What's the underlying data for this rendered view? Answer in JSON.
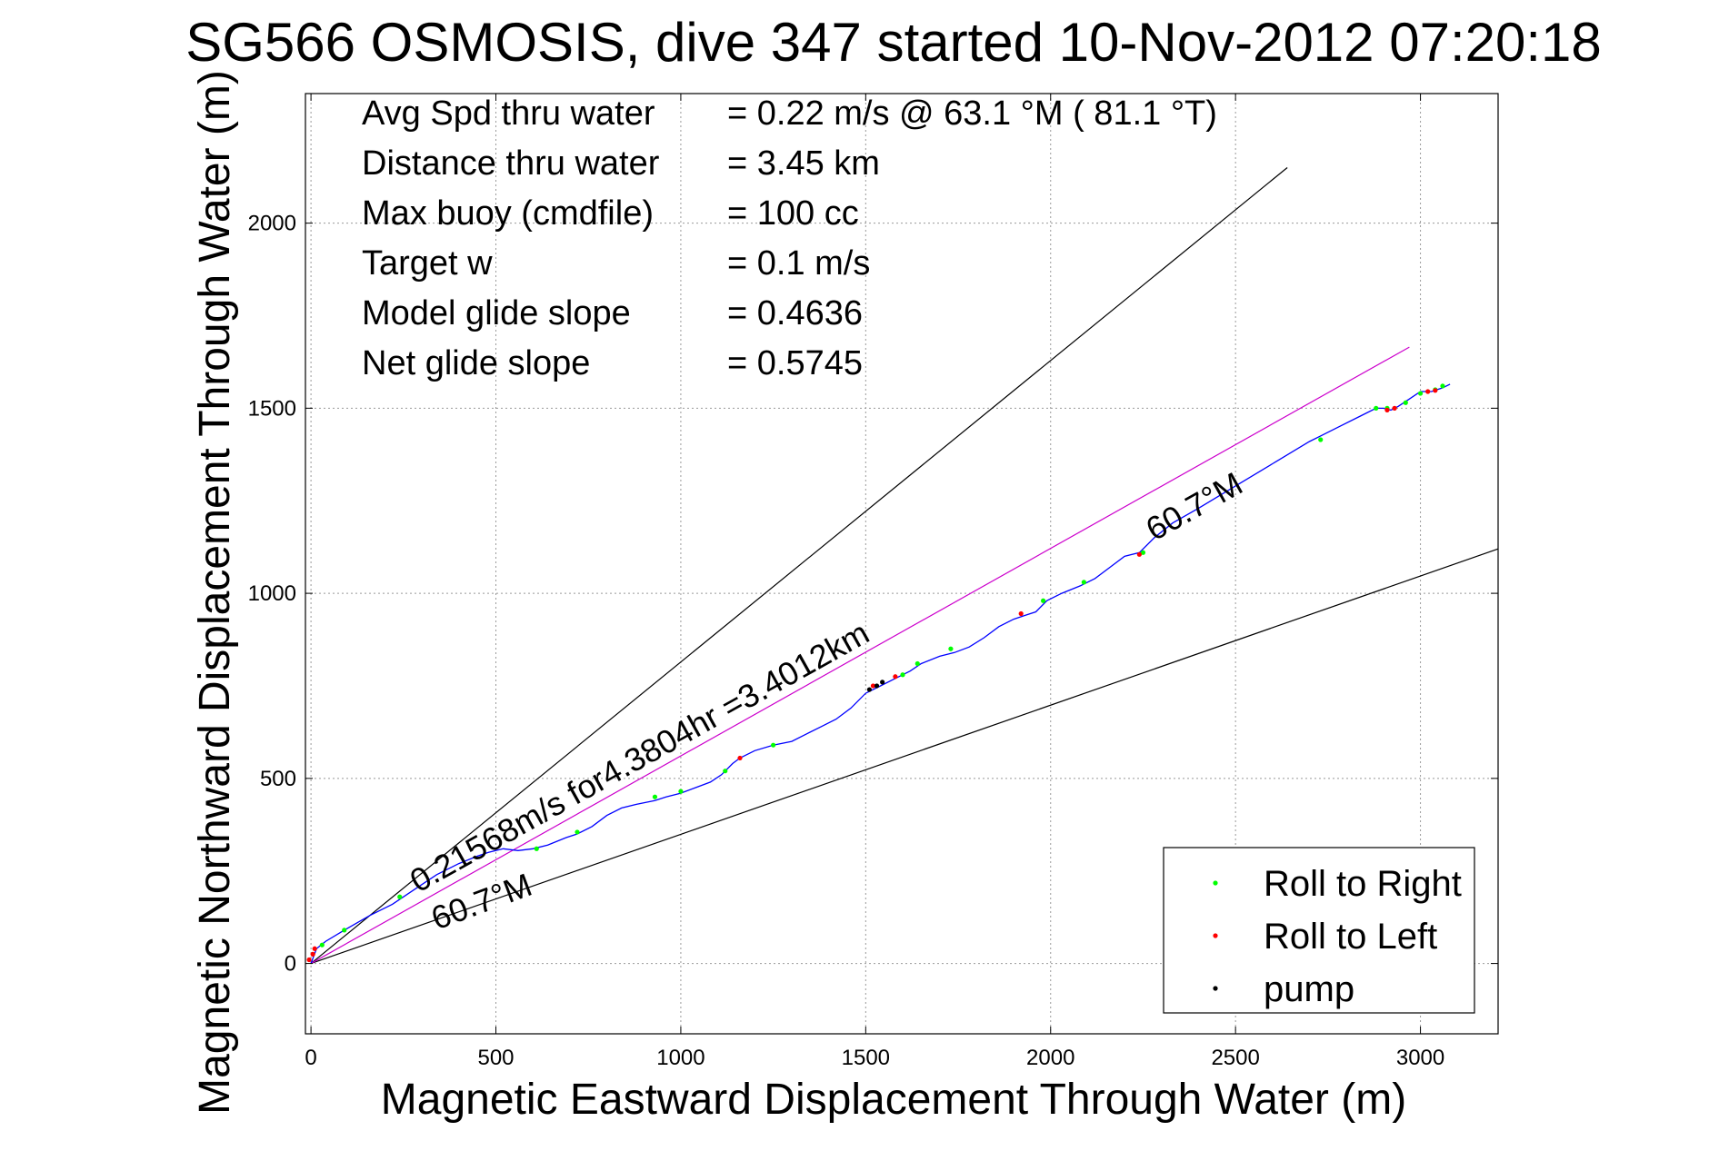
{
  "chart_data": {
    "type": "scatter",
    "title": "SG566 OSMOSIS, dive 347 started 10-Nov-2012 07:20:18",
    "xlabel": "Magnetic Eastward Displacement Through Water (m)",
    "ylabel": "Magnetic Northward Displacement Through Water (m)",
    "xlim": [
      -15,
      3210
    ],
    "ylim": [
      -190,
      2350
    ],
    "xticks": [
      0,
      500,
      1000,
      1500,
      2000,
      2500,
      3000
    ],
    "yticks": [
      0,
      500,
      1000,
      1500,
      2000
    ],
    "grid": true,
    "legend_position": "bottom-right",
    "info_lines": [
      {
        "label": "Avg Spd thru water",
        "value": "=  0.22 m/s @  63.1 °M ( 81.1 °T)"
      },
      {
        "label": "Distance thru water",
        "value": "=  3.45 km"
      },
      {
        "label": "Max buoy (cmdfile)",
        "value": "= 100 cc"
      },
      {
        "label": "Target w",
        "value": "= 0.1 m/s"
      },
      {
        "label": "Model glide slope",
        "value": "= 0.4636"
      },
      {
        "label": "Net glide slope",
        "value": "= 0.5745"
      }
    ],
    "annotations": [
      {
        "text": "0.21568m/s for4.3804hr =3.4012km",
        "x": 290,
        "y": 190
      },
      {
        "text": "60.7°M",
        "x": 2280,
        "y": 1140
      },
      {
        "text": "60.7°M",
        "x": 340,
        "y": 90
      }
    ],
    "reference_lines": [
      {
        "name": "upper-bound",
        "color": "#000000",
        "x": [
          0,
          2640
        ],
        "y": [
          0,
          2150
        ]
      },
      {
        "name": "lower-bound",
        "color": "#000000",
        "x": [
          0,
          3210
        ],
        "y": [
          0,
          1120
        ]
      },
      {
        "name": "net-course",
        "color": "#cc00cc",
        "x": [
          0,
          2970
        ],
        "y": [
          0,
          1665
        ]
      }
    ],
    "track": {
      "color": "#0000ff",
      "x": [
        0,
        15,
        40,
        90,
        160,
        220,
        280,
        340,
        400,
        450,
        480,
        500,
        520,
        560,
        600,
        640,
        690,
        720,
        760,
        800,
        840,
        880,
        930,
        960,
        1000,
        1040,
        1080,
        1110,
        1140,
        1160,
        1200,
        1250,
        1300,
        1340,
        1380,
        1420,
        1460,
        1500,
        1540,
        1580,
        1620,
        1650,
        1700,
        1740,
        1780,
        1820,
        1860,
        1900,
        1930,
        1960,
        1990,
        2030,
        2080,
        2120,
        2160,
        2200,
        2240,
        2280,
        2330,
        2400,
        2500,
        2600,
        2700,
        2730,
        2780,
        2840,
        2880,
        2900,
        2920,
        2940,
        2970,
        3000,
        3030,
        3060,
        3080
      ],
      "y": [
        0,
        40,
        60,
        90,
        130,
        160,
        200,
        240,
        270,
        290,
        300,
        305,
        310,
        305,
        310,
        320,
        340,
        350,
        370,
        400,
        420,
        430,
        440,
        450,
        460,
        475,
        490,
        510,
        540,
        555,
        575,
        590,
        600,
        620,
        640,
        660,
        690,
        730,
        750,
        770,
        790,
        810,
        830,
        840,
        855,
        880,
        910,
        930,
        940,
        950,
        980,
        1000,
        1020,
        1040,
        1070,
        1100,
        1110,
        1150,
        1190,
        1230,
        1290,
        1350,
        1410,
        1425,
        1450,
        1480,
        1500,
        1500,
        1495,
        1505,
        1525,
        1545,
        1545,
        1555,
        1565
      ]
    },
    "series": [
      {
        "name": "Roll to Right",
        "color": "#00ff00",
        "x": [
          30,
          90,
          240,
          610,
          720,
          930,
          1000,
          1120,
          1250,
          1600,
          1640,
          1730,
          1980,
          2090,
          2250,
          2730,
          2880,
          2910,
          2960,
          3000,
          3040,
          3060
        ],
        "y": [
          50,
          90,
          180,
          310,
          355,
          450,
          465,
          520,
          590,
          780,
          810,
          850,
          980,
          1030,
          1110,
          1415,
          1500,
          1500,
          1515,
          1540,
          1550,
          1560
        ]
      },
      {
        "name": "Roll to Left",
        "color": "#ff0000",
        "x": [
          -5,
          5,
          10,
          1160,
          1520,
          1580,
          1920,
          2240,
          2910,
          2930,
          3020,
          3040
        ],
        "y": [
          10,
          25,
          40,
          555,
          750,
          775,
          945,
          1105,
          1495,
          1500,
          1545,
          1548
        ]
      },
      {
        "name": "pump",
        "color": "#000000",
        "x": [
          1510,
          1530,
          1545
        ],
        "y": [
          740,
          750,
          760
        ]
      }
    ]
  }
}
